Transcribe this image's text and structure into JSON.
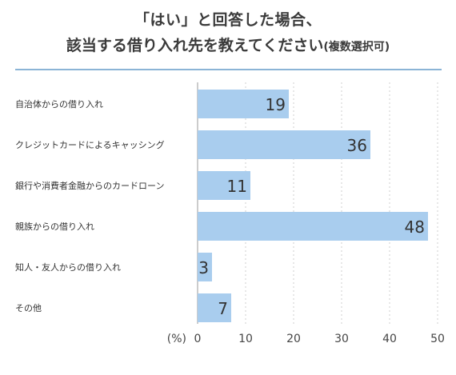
{
  "chart_data": {
    "type": "bar",
    "orientation": "horizontal",
    "title_line1": "「はい」と回答した場合、",
    "title_line2": "該当する借り入れ先を教えてください",
    "title_note": "(複数選択可)",
    "unit": "(%)",
    "categories": [
      "自治体からの借り入れ",
      "クレジットカードによるキャッシング",
      "銀行や消費者金融からのカードローン",
      "親族からの借り入れ",
      "知人・友人からの借り入れ",
      "その他"
    ],
    "values": [
      19,
      36,
      11,
      48,
      3,
      7
    ],
    "xlim": [
      0,
      50
    ],
    "xticks": [
      0,
      10,
      20,
      30,
      40,
      50
    ],
    "grid": true,
    "bar_color": "#a9cdee"
  }
}
